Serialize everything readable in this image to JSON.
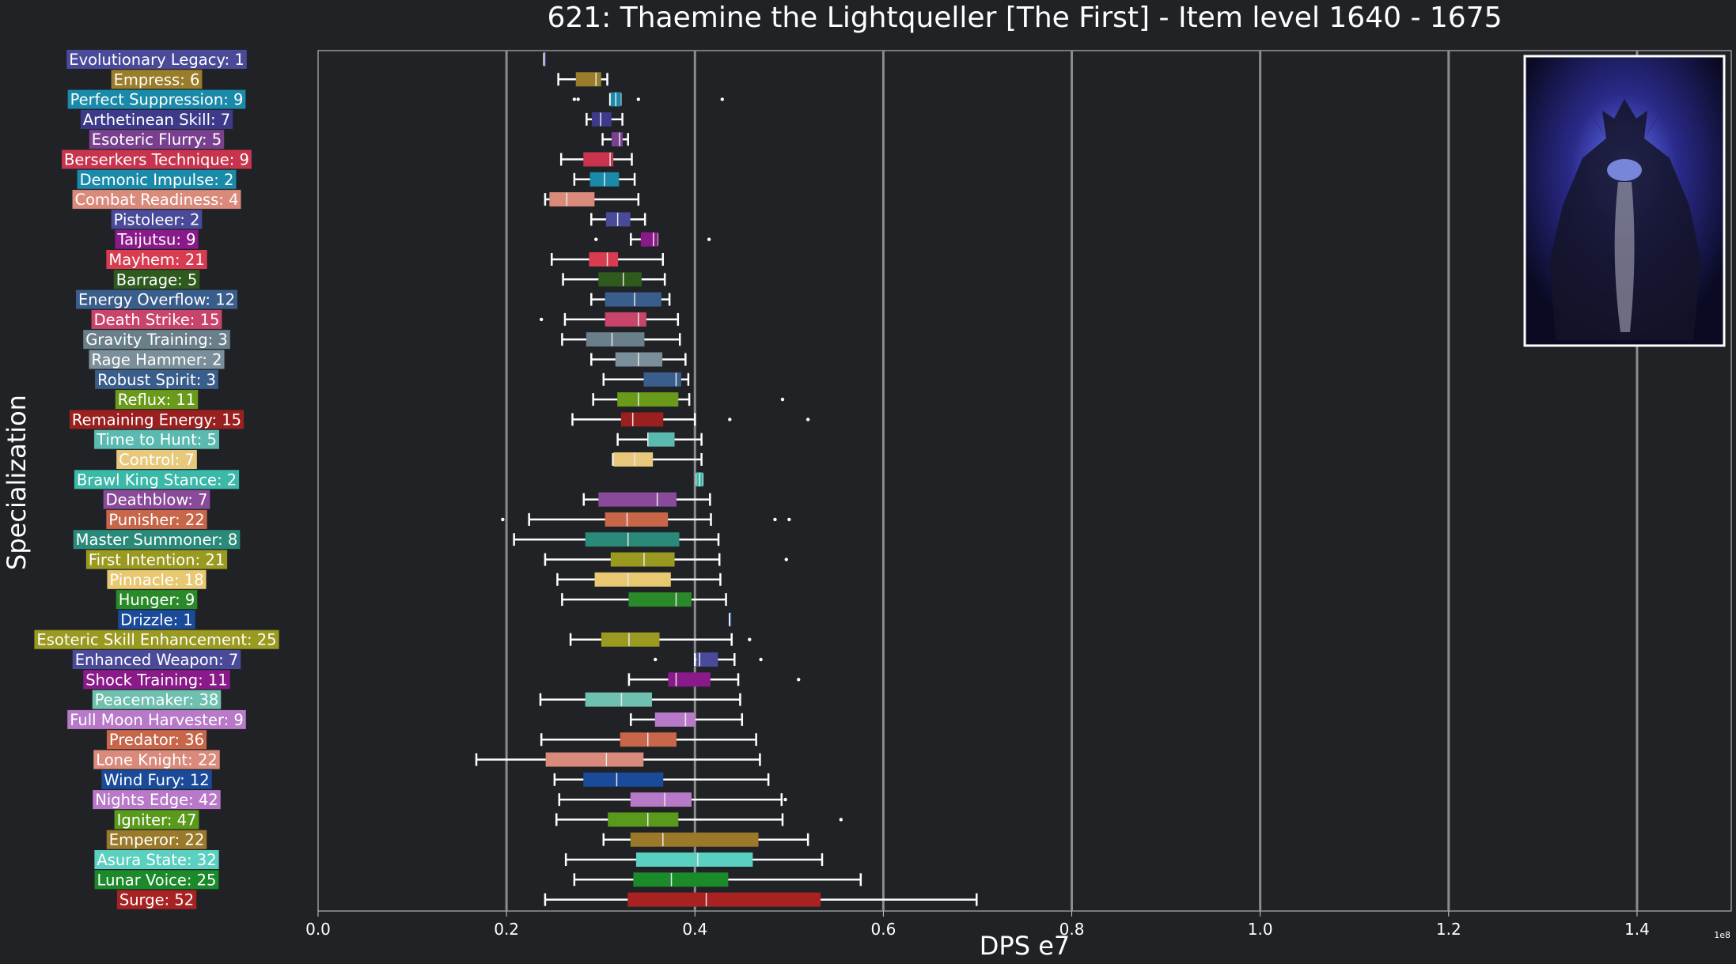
{
  "chart_data": {
    "type": "box",
    "orientation": "horizontal",
    "title": "621: Thaemine the Lightqueller [The First] - Item level 1640 - 1675",
    "xlabel": "DPS e7",
    "ylabel": "Specialization",
    "x_offset_label": "1e8",
    "xlim": [
      0,
      1.5
    ],
    "xticks": [
      0.0,
      0.2,
      0.4,
      0.6,
      0.8,
      1.0,
      1.2,
      1.4
    ],
    "xtick_labels": [
      "0.0",
      "0.2",
      "0.4",
      "0.6",
      "0.8",
      "1.0",
      "1.2",
      "1.4"
    ],
    "grid": "vertical",
    "has_boss_image": true,
    "categories": [
      {
        "label": "Evolutionary Legacy: 1",
        "color": "#4a4a9a",
        "whislo": 0.24,
        "q1": 0.24,
        "med": 0.24,
        "q3": 0.24,
        "whishi": 0.24,
        "fliers": []
      },
      {
        "label": "Empress: 6",
        "color": "#9a7d2a",
        "whislo": 0.255,
        "q1": 0.274,
        "med": 0.295,
        "q3": 0.3,
        "whishi": 0.307,
        "fliers": []
      },
      {
        "label": "Perfect Suppression: 9",
        "color": "#1a8aaa",
        "whislo": 0.31,
        "q1": 0.311,
        "med": 0.316,
        "q3": 0.321,
        "whishi": 0.321,
        "fliers": [
          0.272,
          0.276,
          0.34,
          0.429
        ]
      },
      {
        "label": "Arthetinean Skill: 7",
        "color": "#3d3a8a",
        "whislo": 0.285,
        "q1": 0.291,
        "med": 0.3,
        "q3": 0.311,
        "whishi": 0.323,
        "fliers": []
      },
      {
        "label": "Esoteric Flurry: 5",
        "color": "#7a4090",
        "whislo": 0.302,
        "q1": 0.312,
        "med": 0.32,
        "q3": 0.323,
        "whishi": 0.329,
        "fliers": []
      },
      {
        "label": "Berserkers Technique: 9",
        "color": "#c8344e",
        "whislo": 0.258,
        "q1": 0.282,
        "med": 0.31,
        "q3": 0.313,
        "whishi": 0.333,
        "fliers": []
      },
      {
        "label": "Demonic Impulse: 2",
        "color": "#1a8aaa",
        "whislo": 0.272,
        "q1": 0.289,
        "med": 0.304,
        "q3": 0.319,
        "whishi": 0.336,
        "fliers": []
      },
      {
        "label": "Combat Readiness: 4",
        "color": "#d98a7a",
        "whislo": 0.241,
        "q1": 0.246,
        "med": 0.264,
        "q3": 0.293,
        "whishi": 0.34,
        "fliers": []
      },
      {
        "label": "Pistoleer: 2",
        "color": "#4a4a9a",
        "whislo": 0.29,
        "q1": 0.306,
        "med": 0.318,
        "q3": 0.331,
        "whishi": 0.347,
        "fliers": []
      },
      {
        "label": "Taijutsu: 9",
        "color": "#8a1a8a",
        "whislo": 0.332,
        "q1": 0.343,
        "med": 0.356,
        "q3": 0.36,
        "whishi": 0.36,
        "fliers": [
          0.295,
          0.415
        ]
      },
      {
        "label": "Mayhem: 21",
        "color": "#d83c50",
        "whislo": 0.248,
        "q1": 0.288,
        "med": 0.307,
        "q3": 0.318,
        "whishi": 0.366,
        "fliers": []
      },
      {
        "label": "Barrage: 5",
        "color": "#2f5a1e",
        "whislo": 0.26,
        "q1": 0.298,
        "med": 0.324,
        "q3": 0.343,
        "whishi": 0.368,
        "fliers": []
      },
      {
        "label": "Energy Overflow: 12",
        "color": "#3a5e8c",
        "whislo": 0.29,
        "q1": 0.305,
        "med": 0.336,
        "q3": 0.364,
        "whishi": 0.373,
        "fliers": []
      },
      {
        "label": "Death Strike: 15",
        "color": "#c8446a",
        "whislo": 0.262,
        "q1": 0.305,
        "med": 0.34,
        "q3": 0.348,
        "whishi": 0.382,
        "fliers": [
          0.237
        ]
      },
      {
        "label": "Gravity Training: 3",
        "color": "#6a7f8a",
        "whislo": 0.259,
        "q1": 0.285,
        "med": 0.312,
        "q3": 0.346,
        "whishi": 0.384,
        "fliers": []
      },
      {
        "label": "Rage Hammer: 2",
        "color": "#7a8f99",
        "whislo": 0.29,
        "q1": 0.316,
        "med": 0.34,
        "q3": 0.365,
        "whishi": 0.39,
        "fliers": []
      },
      {
        "label": "Robust Spirit: 3",
        "color": "#3a5e8c",
        "whislo": 0.303,
        "q1": 0.346,
        "med": 0.38,
        "q3": 0.385,
        "whishi": 0.393,
        "fliers": []
      },
      {
        "label": "Reflux: 11",
        "color": "#6a9a1a",
        "whislo": 0.292,
        "q1": 0.318,
        "med": 0.34,
        "q3": 0.382,
        "whishi": 0.394,
        "fliers": [
          0.493
        ]
      },
      {
        "label": "Remaining Energy: 15",
        "color": "#9a2020",
        "whislo": 0.27,
        "q1": 0.322,
        "med": 0.334,
        "q3": 0.366,
        "whishi": 0.4,
        "fliers": [
          0.437,
          0.52
        ]
      },
      {
        "label": "Time to Hunt: 5",
        "color": "#5abab0",
        "whislo": 0.318,
        "q1": 0.35,
        "med": 0.35,
        "q3": 0.378,
        "whishi": 0.407,
        "fliers": []
      },
      {
        "label": "Control: 7",
        "color": "#e8c87a",
        "whislo": 0.313,
        "q1": 0.314,
        "med": 0.336,
        "q3": 0.355,
        "whishi": 0.407,
        "fliers": []
      },
      {
        "label": "Brawl King Stance: 2",
        "color": "#3ab8a8",
        "whislo": 0.402,
        "q1": 0.402,
        "med": 0.405,
        "q3": 0.408,
        "whishi": 0.408,
        "fliers": []
      },
      {
        "label": "Deathblow: 7",
        "color": "#8a4a9a",
        "whislo": 0.282,
        "q1": 0.298,
        "med": 0.36,
        "q3": 0.38,
        "whishi": 0.416,
        "fliers": []
      },
      {
        "label": "Punisher: 22",
        "color": "#c8664a",
        "whislo": 0.224,
        "q1": 0.305,
        "med": 0.328,
        "q3": 0.371,
        "whishi": 0.417,
        "fliers": [
          0.196,
          0.485,
          0.5
        ]
      },
      {
        "label": "Master Summoner: 8",
        "color": "#2a8a7a",
        "whislo": 0.208,
        "q1": 0.284,
        "med": 0.329,
        "q3": 0.383,
        "whishi": 0.425,
        "fliers": []
      },
      {
        "label": "First Intention: 21",
        "color": "#9a9a20",
        "whislo": 0.241,
        "q1": 0.311,
        "med": 0.346,
        "q3": 0.378,
        "whishi": 0.426,
        "fliers": [
          0.497
        ]
      },
      {
        "label": "Pinnacle: 18",
        "color": "#e8c870",
        "whislo": 0.254,
        "q1": 0.294,
        "med": 0.329,
        "q3": 0.374,
        "whishi": 0.427,
        "fliers": []
      },
      {
        "label": "Hunger: 9",
        "color": "#2a8a2a",
        "whislo": 0.259,
        "q1": 0.33,
        "med": 0.38,
        "q3": 0.396,
        "whishi": 0.433,
        "fliers": []
      },
      {
        "label": "Drizzle: 1",
        "color": "#1a4a9a",
        "whislo": 0.437,
        "q1": 0.437,
        "med": 0.437,
        "q3": 0.437,
        "whishi": 0.437,
        "fliers": []
      },
      {
        "label": "Esoteric Skill Enhancement: 25",
        "color": "#9a9a20",
        "whislo": 0.268,
        "q1": 0.301,
        "med": 0.33,
        "q3": 0.362,
        "whishi": 0.439,
        "fliers": [
          0.458
        ]
      },
      {
        "label": "Enhanced Weapon: 7",
        "color": "#4a4a9a",
        "whislo": 0.4,
        "q1": 0.402,
        "med": 0.405,
        "q3": 0.424,
        "whishi": 0.442,
        "fliers": [
          0.358,
          0.47
        ]
      },
      {
        "label": "Shock Training: 11",
        "color": "#8a1a8a",
        "whislo": 0.33,
        "q1": 0.372,
        "med": 0.38,
        "q3": 0.416,
        "whishi": 0.446,
        "fliers": [
          0.51
        ]
      },
      {
        "label": "Peacemaker: 38",
        "color": "#70c0b0",
        "whislo": 0.236,
        "q1": 0.284,
        "med": 0.322,
        "q3": 0.354,
        "whishi": 0.448,
        "fliers": []
      },
      {
        "label": "Full Moon Harvester: 9",
        "color": "#b87ac8",
        "whislo": 0.332,
        "q1": 0.358,
        "med": 0.39,
        "q3": 0.4,
        "whishi": 0.45,
        "fliers": []
      },
      {
        "label": "Predator: 36",
        "color": "#c8664a",
        "whislo": 0.237,
        "q1": 0.321,
        "med": 0.35,
        "q3": 0.38,
        "whishi": 0.465,
        "fliers": []
      },
      {
        "label": "Lone Knight: 22",
        "color": "#d98a7a",
        "whislo": 0.168,
        "q1": 0.242,
        "med": 0.306,
        "q3": 0.345,
        "whishi": 0.469,
        "fliers": []
      },
      {
        "label": "Wind Fury: 12",
        "color": "#1a4a9a",
        "whislo": 0.251,
        "q1": 0.282,
        "med": 0.317,
        "q3": 0.366,
        "whishi": 0.478,
        "fliers": []
      },
      {
        "label": "Nights Edge: 42",
        "color": "#b87ac8",
        "whislo": 0.256,
        "q1": 0.332,
        "med": 0.368,
        "q3": 0.396,
        "whishi": 0.492,
        "fliers": [
          0.496
        ]
      },
      {
        "label": "Igniter: 47",
        "color": "#5a9a1a",
        "whislo": 0.253,
        "q1": 0.308,
        "med": 0.35,
        "q3": 0.382,
        "whishi": 0.493,
        "fliers": [
          0.555
        ]
      },
      {
        "label": "Emperor: 22",
        "color": "#9a7a2a",
        "whislo": 0.303,
        "q1": 0.332,
        "med": 0.366,
        "q3": 0.467,
        "whishi": 0.52,
        "fliers": []
      },
      {
        "label": "Asura State: 32",
        "color": "#5ad0c0",
        "whislo": 0.263,
        "q1": 0.338,
        "med": 0.403,
        "q3": 0.461,
        "whishi": 0.535,
        "fliers": []
      },
      {
        "label": "Lunar Voice: 25",
        "color": "#1a8a2a",
        "whislo": 0.272,
        "q1": 0.335,
        "med": 0.375,
        "q3": 0.435,
        "whishi": 0.576,
        "fliers": []
      },
      {
        "label": "Surge: 52",
        "color": "#a82222",
        "whislo": 0.241,
        "q1": 0.329,
        "med": 0.412,
        "q3": 0.533,
        "whishi": 0.699,
        "fliers": []
      }
    ]
  }
}
